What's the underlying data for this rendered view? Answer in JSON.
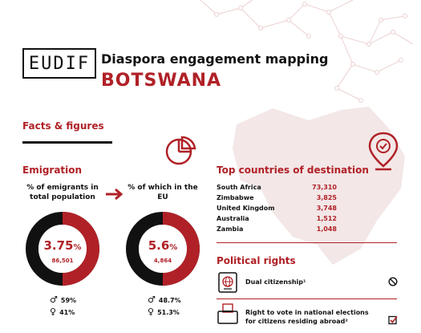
{
  "header": {
    "logo_text": "EUDIF",
    "title_line1": "Diaspora engagement mapping",
    "title_line2": "BOTSWANA"
  },
  "facts": {
    "title": "Facts & figures"
  },
  "emigration": {
    "title": "Emigration",
    "emigrants_label": "% of emigrants in total population",
    "emigrants_pct": "3.75",
    "pct_sign": "%",
    "emigrants_count": "86,501",
    "emigrants_share": 0.0375,
    "eu_label": "% of which in the EU",
    "eu_pct": "5.6",
    "eu_count": "4,864",
    "eu_share": 0.056,
    "gender_total": {
      "male": "59%",
      "female": "41%"
    },
    "gender_eu": {
      "male": "48.7%",
      "female": "51.3%"
    }
  },
  "destinations": {
    "title": "Top countries of destination",
    "rows": [
      {
        "country": "South Africa",
        "value": "73,310"
      },
      {
        "country": "Zimbabwe",
        "value": "3,825"
      },
      {
        "country": "United Kingdom",
        "value": "3,748"
      },
      {
        "country": "Australia",
        "value": "1,512"
      },
      {
        "country": "Zambia",
        "value": "1,048"
      }
    ]
  },
  "political_rights": {
    "title": "Political rights",
    "dual_citizenship": "Dual citizenship¹",
    "vote_line1": "Right to vote in national elections",
    "vote_line2": "for citizens residing abroad²"
  },
  "colors": {
    "accent": "#b02127",
    "dark": "#111111",
    "map": "#f1e6e6"
  },
  "icons": {
    "pie": "pie-chart-icon",
    "pin": "location-pin-icon",
    "arrow": "arrow-right-icon",
    "globe": "passport-globe-icon",
    "ballot": "ballot-box-icon",
    "no": "no-entry-icon",
    "check": "check-box-icon"
  }
}
